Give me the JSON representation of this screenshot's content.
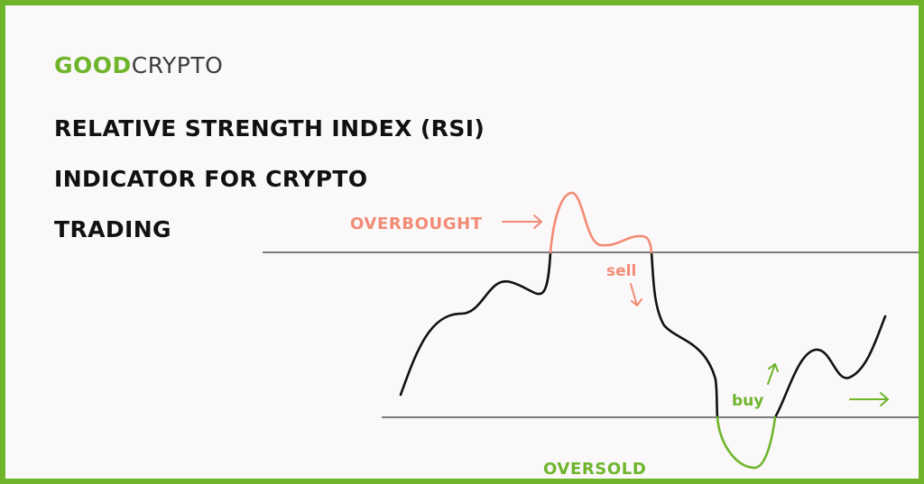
{
  "brand": {
    "logo_primary": "GOOD",
    "logo_secondary": "CRYPTO",
    "primary_color": "#6fb52c",
    "secondary_color": "#3d3d3d"
  },
  "headline": {
    "line1": "RELATIVE STRENGTH INDEX (RSI)",
    "line2": "INDICATOR FOR CRYPTO",
    "line3": "TRADING"
  },
  "diagram": {
    "overbought_label": "OVERBOUGHT",
    "oversold_label": "OVERSOLD",
    "sell_label": "sell",
    "buy_label": "buy",
    "overbought_color": "#f28b76",
    "oversold_color": "#6fb52c",
    "line_color": "#111111"
  }
}
